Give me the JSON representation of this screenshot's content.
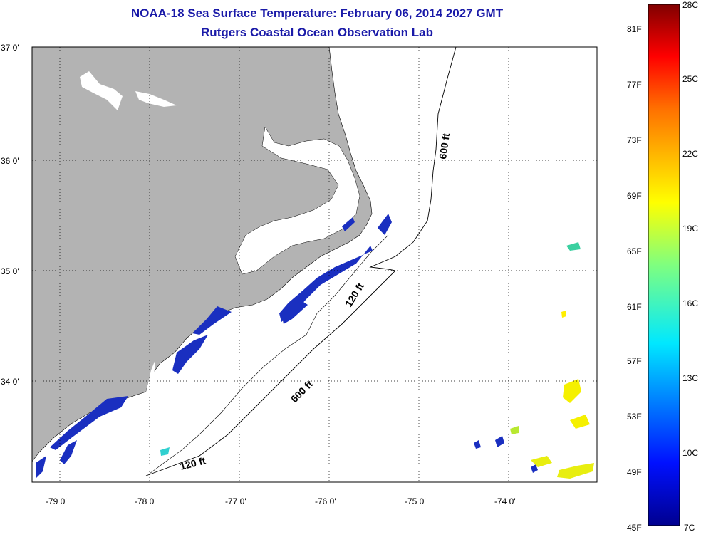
{
  "header": {
    "title_line1": "NOAA-18 Sea Surface Temperature:  February 06, 2014 2027 GMT",
    "title_line2": "Rutgers Coastal Ocean Observation Lab"
  },
  "map": {
    "lat_labels": [
      "37 0'",
      "36 0'",
      "35 0'",
      "34 0'"
    ],
    "lon_labels": [
      "-79 0'",
      "-78 0'",
      "-77 0'",
      "-76 0'",
      "-75 0'",
      "-74 0'"
    ],
    "contour_labels": [
      "600 ft",
      "120 ft",
      "600 ft",
      "120 ft"
    ],
    "colors": {
      "land": "#b3b3b3",
      "ocean": "#ffffff",
      "grid": "#000000",
      "sst_cold": "#1a2fc0"
    }
  },
  "colorbar": {
    "top_label": "28C",
    "bottom_left_label": "45F",
    "bottom_right_label": "7C",
    "fahrenheit_ticks": [
      "81F",
      "77F",
      "73F",
      "69F",
      "65F",
      "61F",
      "57F",
      "53F",
      "49F"
    ],
    "celsius_ticks": [
      "25C",
      "22C",
      "19C",
      "16C",
      "13C",
      "10C"
    ]
  }
}
